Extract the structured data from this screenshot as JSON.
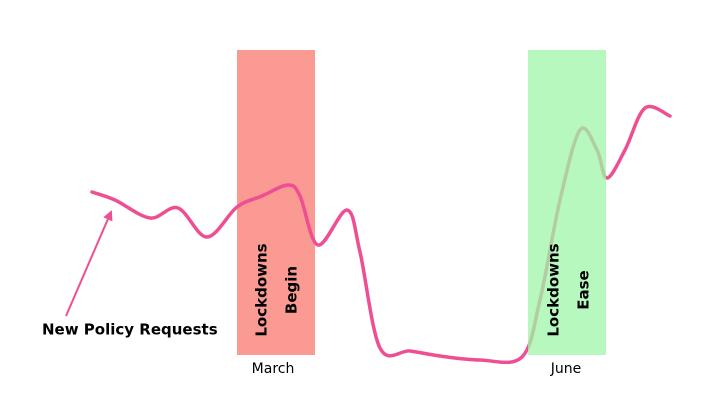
{
  "bands": [
    {
      "lines": [
        "Lockdowns",
        "Begin"
      ],
      "label": "March"
    },
    {
      "lines": [
        "Lockdowns",
        "Ease"
      ],
      "label": "June"
    }
  ],
  "series_label": "New Policy Requests"
}
